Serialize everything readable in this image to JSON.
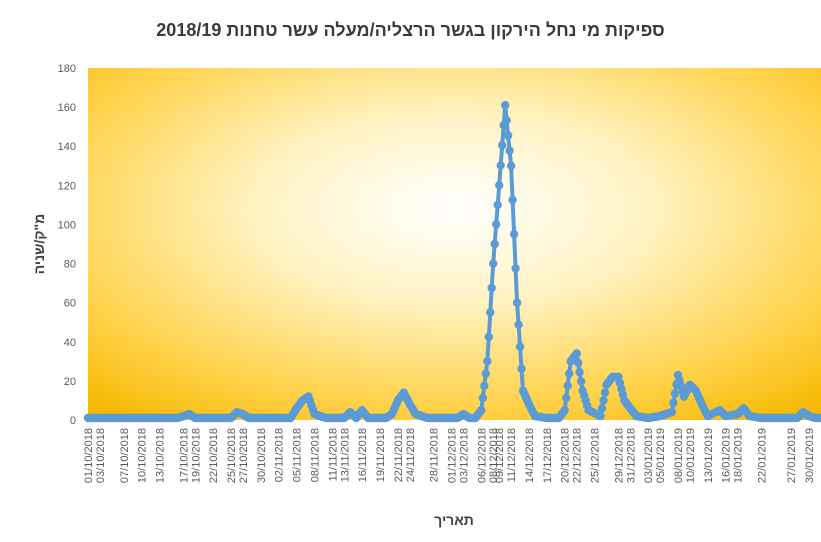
{
  "chart_data": {
    "type": "scatter",
    "title": "ספיקות מי נחל הירקון בגשר הרצליה/מעלה עשר טחנות 2018/19",
    "xlabel": "תאריך",
    "ylabel": "מ\"ק/שניה",
    "ylim": [
      0,
      180
    ],
    "yticks": [
      "0",
      "20",
      "40",
      "60",
      "80",
      "100",
      "120",
      "140",
      "160",
      "180"
    ],
    "x_range": [
      "01/10/2018",
      "01/02/2019"
    ],
    "x_ticks": [
      "01/10/2018",
      "03/10/2018",
      "07/10/2018",
      "10/10/2018",
      "13/10/2018",
      "17/10/2018",
      "19/10/2018",
      "22/10/2018",
      "25/10/2018",
      "27/10/2018",
      "30/10/2018",
      "02/11/2018",
      "05/11/2018",
      "08/11/2018",
      "11/11/2018",
      "13/11/2018",
      "16/11/2018",
      "19/11/2018",
      "22/11/2018",
      "24/11/2018",
      "28/11/2018",
      "01/12/2018",
      "03/12/2018",
      "06/12/2018",
      "08/12/2018",
      "09/12/2018",
      "11/12/2018",
      "14/12/2018",
      "17/12/2018",
      "20/12/2018",
      "22/12/2018",
      "25/12/2018",
      "29/12/2018",
      "31/12/2018",
      "03/01/2019",
      "05/01/2019",
      "08/01/2019",
      "10/01/2019",
      "13/01/2019",
      "16/01/2019",
      "18/01/2019",
      "22/01/2019",
      "27/01/2019",
      "30/01/2019"
    ],
    "series": [
      {
        "color": "#5b9bd5",
        "points": [
          [
            "01/10/2018",
            1
          ],
          [
            "03/10/2018",
            1
          ],
          [
            "07/10/2018",
            1
          ],
          [
            "10/10/2018",
            1
          ],
          [
            "13/10/2018",
            1
          ],
          [
            "16/10/2018",
            1
          ],
          [
            "18/10/2018",
            3
          ],
          [
            "19/10/2018",
            1
          ],
          [
            "22/10/2018",
            1
          ],
          [
            "25/10/2018",
            1
          ],
          [
            "26/10/2018",
            4
          ],
          [
            "27/10/2018",
            3
          ],
          [
            "28/10/2018",
            1
          ],
          [
            "30/10/2018",
            1
          ],
          [
            "02/11/2018",
            1
          ],
          [
            "04/11/2018",
            1
          ],
          [
            "05/11/2018",
            6
          ],
          [
            "06/11/2018",
            10
          ],
          [
            "07/11/2018",
            12
          ],
          [
            "08/11/2018",
            3
          ],
          [
            "10/11/2018",
            1
          ],
          [
            "13/11/2018",
            1
          ],
          [
            "14/11/2018",
            4
          ],
          [
            "15/11/2018",
            1
          ],
          [
            "16/11/2018",
            5
          ],
          [
            "17/11/2018",
            1
          ],
          [
            "20/11/2018",
            1
          ],
          [
            "21/11/2018",
            3
          ],
          [
            "22/11/2018",
            10
          ],
          [
            "23/11/2018",
            14
          ],
          [
            "24/11/2018",
            8
          ],
          [
            "25/11/2018",
            3
          ],
          [
            "27/11/2018",
            1
          ],
          [
            "30/11/2018",
            1
          ],
          [
            "02/12/2018",
            1
          ],
          [
            "03/12/2018",
            3
          ],
          [
            "04/12/2018",
            1
          ],
          [
            "05/12/2018",
            1
          ],
          [
            "06/12/2018",
            5
          ],
          [
            "07/12/2018",
            30
          ],
          [
            "08/12/2018",
            80
          ],
          [
            "09/12/2018",
            120
          ],
          [
            "10/12/2018",
            161
          ],
          [
            "11/12/2018",
            130
          ],
          [
            "12/12/2018",
            60
          ],
          [
            "13/12/2018",
            15
          ],
          [
            "14/12/2018",
            8
          ],
          [
            "15/12/2018",
            2
          ],
          [
            "17/12/2018",
            1
          ],
          [
            "19/12/2018",
            1
          ],
          [
            "20/12/2018",
            5
          ],
          [
            "21/12/2018",
            30
          ],
          [
            "22/12/2018",
            34
          ],
          [
            "23/12/2018",
            15
          ],
          [
            "24/12/2018",
            5
          ],
          [
            "26/12/2018",
            2
          ],
          [
            "27/12/2018",
            18
          ],
          [
            "28/12/2018",
            22
          ],
          [
            "29/12/2018",
            22
          ],
          [
            "30/12/2018",
            10
          ],
          [
            "31/12/2018",
            6
          ],
          [
            "01/01/2019",
            2
          ],
          [
            "03/01/2019",
            1
          ],
          [
            "05/01/2019",
            2
          ],
          [
            "07/01/2019",
            4
          ],
          [
            "08/01/2019",
            23
          ],
          [
            "09/01/2019",
            12
          ],
          [
            "10/01/2019",
            18
          ],
          [
            "11/01/2019",
            15
          ],
          [
            "12/01/2019",
            8
          ],
          [
            "13/01/2019",
            2
          ],
          [
            "15/01/2019",
            5
          ],
          [
            "16/01/2019",
            2
          ],
          [
            "18/01/2019",
            3
          ],
          [
            "19/01/2019",
            6
          ],
          [
            "20/01/2019",
            2
          ],
          [
            "22/01/2019",
            1
          ],
          [
            "25/01/2019",
            1
          ],
          [
            "28/01/2019",
            1
          ],
          [
            "29/01/2019",
            4
          ],
          [
            "30/01/2019",
            2
          ],
          [
            "31/01/2019",
            1
          ],
          [
            "01/02/2019",
            1
          ]
        ]
      }
    ]
  }
}
